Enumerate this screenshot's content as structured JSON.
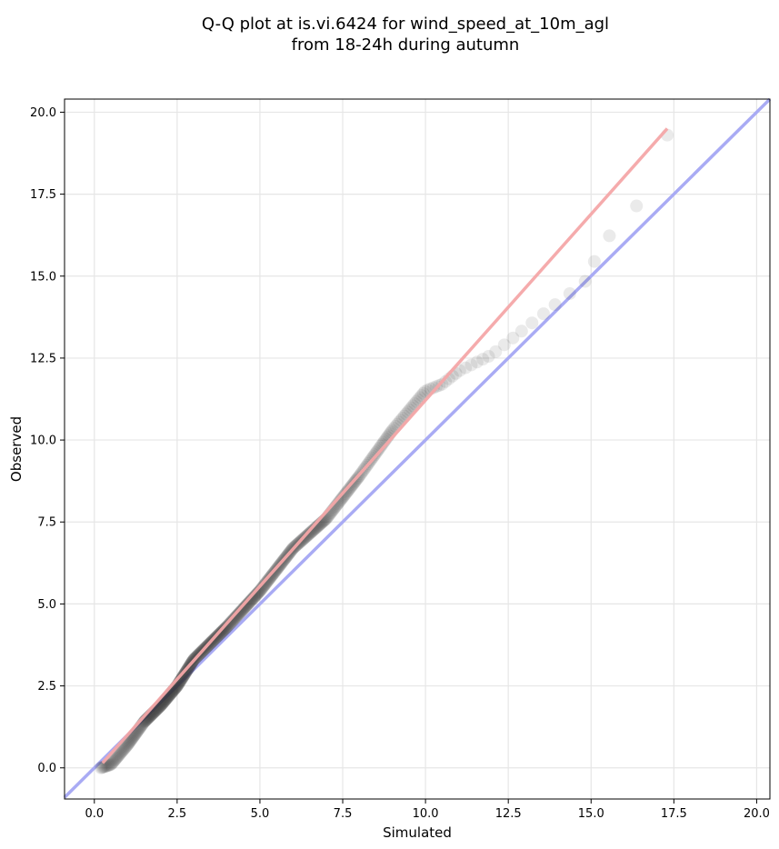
{
  "chart_data": {
    "type": "scatter",
    "title_lines": [
      "Q-Q plot at is.vi.6424 for wind_speed_at_10m_agl",
      "from 18-24h during autumn"
    ],
    "xlabel": "Simulated",
    "ylabel": "Observed",
    "xlim": [
      -0.9,
      20.4
    ],
    "ylim": [
      -0.95,
      20.4
    ],
    "x_ticks": [
      "0.0",
      "2.5",
      "5.0",
      "7.5",
      "10.0",
      "12.5",
      "15.0",
      "17.5",
      "20.0"
    ],
    "y_ticks": [
      "0.0",
      "2.5",
      "5.0",
      "7.5",
      "10.0",
      "12.5",
      "15.0",
      "17.5",
      "20.0"
    ],
    "grid": true,
    "colors": {
      "points": "#333333",
      "fit_line": "#f4a6a8",
      "identity_line": "#a9abf4",
      "grid": "#e6e6e6"
    },
    "fit_line": {
      "x": [
        0.25,
        17.3
      ],
      "y": [
        0.15,
        19.5
      ]
    },
    "identity_line": {
      "x": [
        -0.9,
        20.4
      ],
      "y": [
        -0.9,
        20.4
      ]
    },
    "quantile_anchors": {
      "x": [
        0.2,
        0.5,
        1.0,
        1.5,
        2.0,
        2.5,
        3.0,
        4.0,
        5.0,
        6.0,
        7.0,
        8.0,
        9.0,
        10.0,
        10.5,
        11.0,
        12.0,
        13.0,
        14.0,
        14.8,
        15.0,
        15.2,
        15.6,
        16.0,
        16.3,
        17.0,
        17.3
      ],
      "y": [
        0.0,
        0.1,
        0.7,
        1.4,
        1.9,
        2.5,
        3.3,
        4.3,
        5.4,
        6.7,
        7.6,
        8.9,
        10.3,
        11.5,
        11.7,
        12.1,
        12.6,
        13.4,
        14.2,
        14.8,
        15.2,
        15.7,
        16.3,
        16.7,
        17.1,
        17.5,
        19.3
      ]
    },
    "point_count": 480
  }
}
